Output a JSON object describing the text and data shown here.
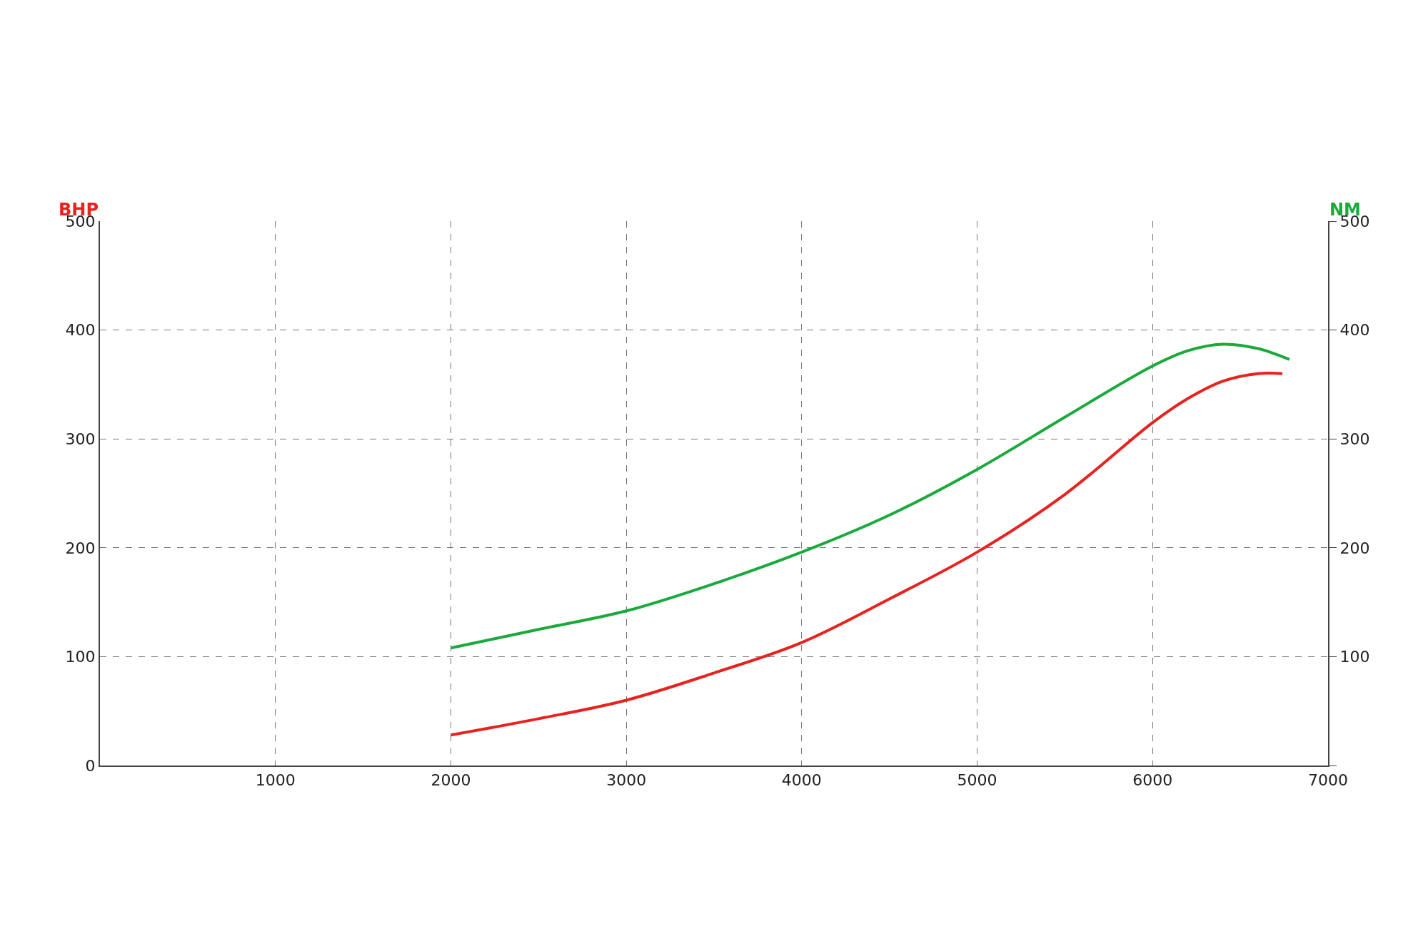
{
  "chart_data": {
    "type": "line",
    "ylabel": "BHP",
    "y2label": "NM",
    "xlim": [
      0,
      7000
    ],
    "xticks": [
      1000,
      2000,
      3000,
      4000,
      5000,
      6000,
      7000
    ],
    "ylim": [
      0,
      500
    ],
    "yticks": [
      0,
      100,
      200,
      300,
      400,
      500
    ],
    "y2lim": [
      0,
      500
    ],
    "y2ticks": [
      {
        "value": 0,
        "label": null
      },
      100,
      200,
      300,
      400,
      500
    ],
    "grid": true,
    "marker": "none",
    "line_style": "solid",
    "series": [
      {
        "color": "#e8221e",
        "x": [
          2000,
          2500,
          3000,
          3500,
          4000,
          4500,
          5000,
          5500,
          6000,
          6200,
          6400,
          6600,
          6740
        ],
        "values": [
          28,
          43,
          60,
          85,
          113,
          153,
          196,
          249,
          315,
          337,
          353,
          360,
          360
        ]
      },
      {
        "color": "#1aaa3c",
        "axis": "y2",
        "x": [
          2000,
          2500,
          3000,
          3500,
          4000,
          4500,
          5000,
          5500,
          6000,
          6200,
          6400,
          6600,
          6780
        ],
        "values": [
          108,
          125,
          142,
          167,
          196,
          230,
          272,
          320,
          367,
          381,
          387,
          383,
          373
        ]
      }
    ]
  }
}
